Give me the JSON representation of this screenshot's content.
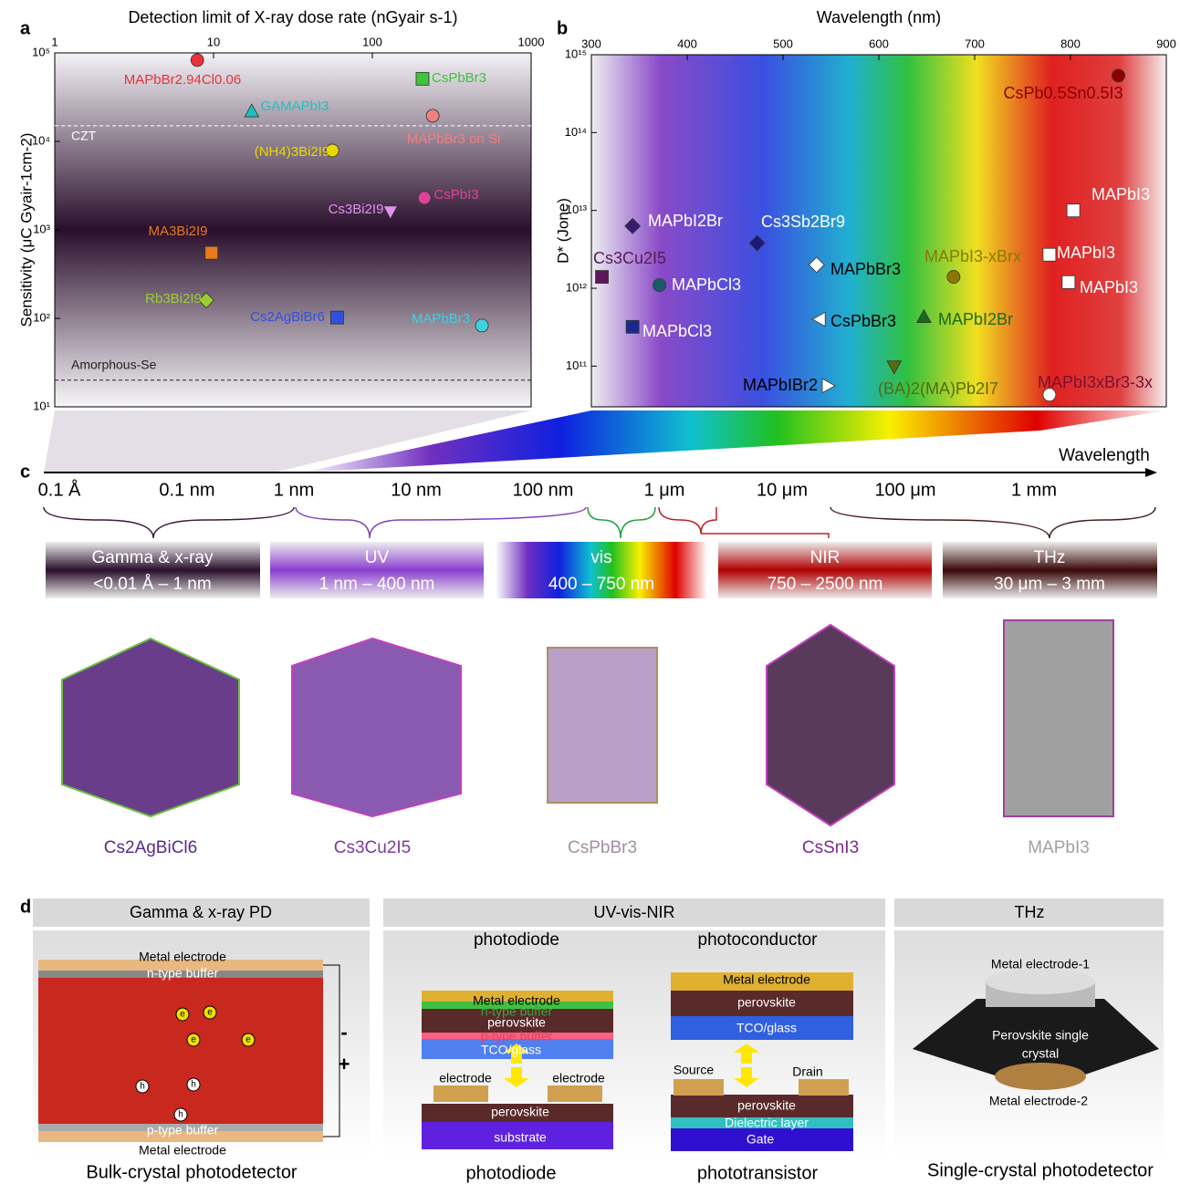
{
  "panel_labels": [
    "a",
    "b",
    "c",
    "d"
  ],
  "chart_data": [
    {
      "type": "scatter",
      "x_label": "Detection limit of X-ray dose rate (nGyair s-1)",
      "y_label": "Sensitivity (μC Gyair-1cm-2)",
      "log_x": true,
      "log_y": true,
      "xlim": [
        1,
        1000
      ],
      "xticks": [
        1,
        10,
        100,
        1000
      ],
      "ylim": [
        10,
        100000
      ],
      "yticks": [
        {
          "value": 10,
          "label": "10¹"
        },
        {
          "value": 100,
          "label": "10²"
        },
        {
          "value": 1000,
          "label": "10³"
        },
        {
          "value": 10000,
          "label": "10⁴"
        },
        {
          "value": 100000,
          "label": "10⁵"
        }
      ],
      "reference_lines": [
        {
          "label": "CZT",
          "value": 15000,
          "color": "#ffffff"
        },
        {
          "label": "Amorphous-Se",
          "value": 20,
          "color": "#222222"
        }
      ],
      "series": [
        {
          "name": "MAPbBr2.94Cl0.06",
          "color": "#e8333a",
          "marker": "circle",
          "x": [
            7.9
          ],
          "values": [
            83000
          ]
        },
        {
          "name": "CsPbBr3",
          "color": "#3ec43a",
          "marker": "square",
          "x": [
            207
          ],
          "values": [
            51000
          ]
        },
        {
          "name": "GAMAPbI3",
          "color": "#1fbfbf",
          "marker": "triangle",
          "x": [
            17.4
          ],
          "values": [
            22000
          ]
        },
        {
          "name": "MAPbBr3 on Si",
          "color": "#f08080",
          "marker": "circle",
          "x": [
            240
          ],
          "values": [
            19500
          ]
        },
        {
          "name": "(NH4)3Bi2I9",
          "color": "#e8d800",
          "marker": "circle",
          "x": [
            56
          ],
          "values": [
            7900
          ]
        },
        {
          "name": "CsPbI3",
          "color": "#e0409a",
          "marker": "circle",
          "x": [
            213
          ],
          "values": [
            2300
          ]
        },
        {
          "name": "Cs3Bi2I9",
          "color": "#e090f0",
          "marker": "triangle-down",
          "x": [
            130
          ],
          "values": [
            1600
          ]
        },
        {
          "name": "MA3Bi2I9",
          "color": "#e87a1e",
          "marker": "square",
          "x": [
            9.7
          ],
          "values": [
            550
          ]
        },
        {
          "name": "Rb3Bi2I9",
          "color": "#9acd32",
          "marker": "diamond",
          "x": [
            9.0
          ],
          "values": [
            160
          ]
        },
        {
          "name": "Cs2AgBiBr6",
          "color": "#3050e0",
          "marker": "square",
          "x": [
            60
          ],
          "values": [
            102
          ]
        },
        {
          "name": "MAPbBr3",
          "color": "#40d0e0",
          "marker": "circle",
          "x": [
            490
          ],
          "values": [
            83
          ]
        }
      ]
    },
    {
      "type": "scatter",
      "x_label": "Wavelength (nm)",
      "y_label": "D* (Jone)",
      "log_y": true,
      "xlim": [
        300,
        900
      ],
      "xticks": [
        300,
        400,
        500,
        600,
        700,
        800,
        900
      ],
      "ylim": [
        30000000000,
        1000000000000000
      ],
      "yticks": [
        {
          "value": 100000000000,
          "label": "10¹¹"
        },
        {
          "value": 1000000000000,
          "label": "10¹²"
        },
        {
          "value": 10000000000000,
          "label": "10¹³"
        },
        {
          "value": 100000000000000,
          "label": "10¹⁴"
        },
        {
          "value": 1000000000000000,
          "label": "10¹⁵"
        }
      ],
      "series": [
        {
          "name": "CsPb0.5Sn0.5I3",
          "color": "#8b0000",
          "marker": "circle",
          "x": [
            850
          ],
          "values": [
            540000000000000
          ]
        },
        {
          "name": "MAPbI3",
          "color": "#ffffff",
          "marker": "square",
          "x": [
            803
          ],
          "values": [
            10000000000000
          ]
        },
        {
          "name": "MAPbI2Br",
          "color": "#3a1a6e",
          "label_color": "#ffffff",
          "marker": "diamond",
          "x": [
            343
          ],
          "values": [
            6300000000000
          ]
        },
        {
          "name": "Cs3Sb2Br9",
          "color": "#1a1a7a",
          "label_color": "#ffffff",
          "marker": "diamond",
          "x": [
            473
          ],
          "values": [
            3800000000000
          ]
        },
        {
          "name": "MAPbI3",
          "color": "#ffffff",
          "marker": "square",
          "x": [
            778
          ],
          "values": [
            2700000000000
          ]
        },
        {
          "name": "MAPbBr3",
          "color": "#ffffff",
          "label_color": "#000000",
          "marker": "diamond",
          "x": [
            535
          ],
          "values": [
            2000000000000
          ]
        },
        {
          "name": "MAPbI3-xBrx",
          "color": "#8a7a00",
          "marker": "circle",
          "x": [
            678
          ],
          "values": [
            1400000000000
          ]
        },
        {
          "name": "Cs3Cu2I5",
          "color": "#5a1a5a",
          "marker": "square",
          "x": [
            311
          ],
          "values": [
            1400000000000
          ]
        },
        {
          "name": "MAPbI3",
          "color": "#ffffff",
          "marker": "square",
          "x": [
            798
          ],
          "values": [
            1200000000000
          ]
        },
        {
          "name": "MAPbCl3",
          "color": "#1a5a6a",
          "label_color": "#ffffff",
          "marker": "circle",
          "x": [
            371
          ],
          "values": [
            1100000000000
          ]
        },
        {
          "name": "CsPbBr3",
          "color": "#ffffff",
          "label_color": "#000000",
          "marker": "triangle-left",
          "x": [
            538
          ],
          "values": [
            400000000000
          ]
        },
        {
          "name": "MAPbI2Br",
          "color": "#1a6a1a",
          "marker": "triangle",
          "x": [
            647
          ],
          "values": [
            430000000000
          ]
        },
        {
          "name": "MAPbCl3",
          "color": "#1a2a8a",
          "label_color": "#ffffff",
          "marker": "square",
          "x": [
            343
          ],
          "values": [
            320000000000
          ]
        },
        {
          "name": "(BA)2(MA)Pb2I7",
          "color": "#5a6a10",
          "marker": "triangle-down",
          "x": [
            616
          ],
          "values": [
            98000000000
          ]
        },
        {
          "name": "MAPbIBr2",
          "color": "#ffffff",
          "label_color": "#000000",
          "marker": "triangle-right",
          "x": [
            547
          ],
          "values": [
            56000000000
          ]
        },
        {
          "name": "MAPbI3xBr3-3x",
          "color": "#ffffff",
          "label_color": "#7a1030",
          "marker": "circle",
          "x": [
            778
          ],
          "values": [
            43000000000
          ]
        }
      ]
    }
  ],
  "spectrum": {
    "axis_label": "Wavelength",
    "ticks": [
      "0.1 Å",
      "0.1 nm",
      "1 nm",
      "10 nm",
      "100 nm",
      "1 μm",
      "10 μm",
      "100 μm",
      "1 mm"
    ],
    "bands": [
      {
        "name": "Gamma & x-ray",
        "range": "<0.01 Å – 1 nm"
      },
      {
        "name": "UV",
        "range": "1 nm – 400 nm"
      },
      {
        "name": "vis",
        "range": "400 – 750 nm"
      },
      {
        "name": "NIR",
        "range": "750 – 2500 nm"
      },
      {
        "name": "THz",
        "range": "30 μm – 3 mm"
      }
    ]
  },
  "crystals": [
    "Cs2AgBiCl6",
    "Cs3Cu2I5",
    "CsPbBr3",
    "CsSnI3",
    "MAPbI3"
  ],
  "devices": {
    "carriers": [
      "e",
      "h"
    ],
    "polarity": [
      "-",
      "+"
    ],
    "sections": [
      {
        "title": "Gamma & x-ray PD",
        "labels": [
          "Metal electrode",
          "n-type buffer",
          "p-type buffer",
          "Metal electrode",
          "Bulk-crystal photodetector"
        ]
      },
      {
        "title": "UV-vis-NIR",
        "labels": [
          "photodiode",
          "photoconductor",
          "Metal electrode",
          "n-type buffer",
          "perovskite",
          "p-type buffer",
          "TCO/glass",
          "Metal electrode",
          "perovskite",
          "TCO/glass",
          "electrode",
          "electrode",
          "perovskite",
          "substrate",
          "photodiode",
          "Source",
          "Drain",
          "perovskite",
          "Dielectric layer",
          "Gate",
          "phototransistor"
        ]
      },
      {
        "title": "THz",
        "labels": [
          "Metal electrode-1",
          "Perovskite single",
          "crystal",
          "Metal electrode-2",
          "Single-crystal photodetector"
        ]
      }
    ]
  }
}
